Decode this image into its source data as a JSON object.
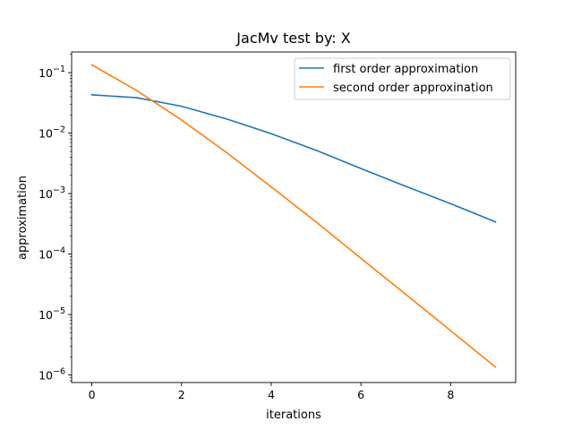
{
  "chart_data": {
    "type": "line",
    "title": "JacMv test by: X",
    "xlabel": "iterations",
    "ylabel": "approximation",
    "xlim": [
      -0.45,
      9.45
    ],
    "ylim": [
      7.5e-07,
      0.22
    ],
    "yscale": "log",
    "grid": false,
    "legend_position": "top-right",
    "x": [
      0,
      1,
      2,
      3,
      4,
      5,
      6,
      7,
      8,
      9
    ],
    "xticks": [
      0,
      2,
      4,
      6,
      8
    ],
    "yticks": [
      {
        "value": 1e-06,
        "base": "10",
        "exp": "−6"
      },
      {
        "value": 1e-05,
        "base": "10",
        "exp": "−5"
      },
      {
        "value": 0.0001,
        "base": "10",
        "exp": "−4"
      },
      {
        "value": 0.001,
        "base": "10",
        "exp": "−3"
      },
      {
        "value": 0.01,
        "base": "10",
        "exp": "−2"
      },
      {
        "value": 0.1,
        "base": "10",
        "exp": "−1"
      }
    ],
    "series": [
      {
        "name": "first order approximation",
        "color": "#1f77b4",
        "values": [
          0.043,
          0.0385,
          0.0278,
          0.0172,
          0.0098,
          0.0052,
          0.0026,
          0.00132,
          0.00068,
          0.00034
        ]
      },
      {
        "name": "second order approxination",
        "color": "#ff7f0e",
        "values": [
          0.135,
          0.0506,
          0.0165,
          0.0048,
          0.00129,
          0.00034,
          8.5e-05,
          2.15e-05,
          5.4e-06,
          1.35e-06
        ]
      }
    ]
  }
}
